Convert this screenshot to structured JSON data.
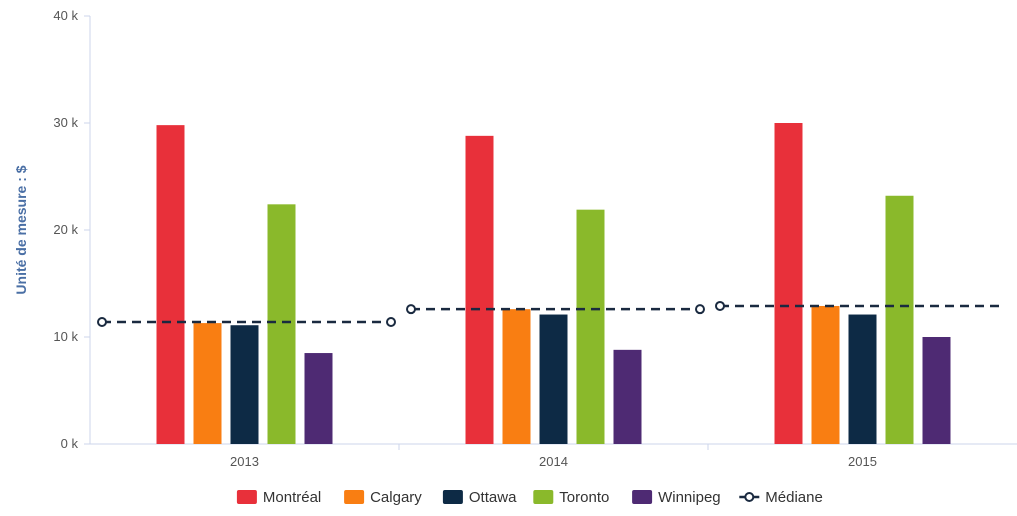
{
  "chart_data": {
    "type": "bar",
    "title": "",
    "xlabel": "",
    "ylabel": "Unité de mesure : $",
    "categories": [
      "2013",
      "2014",
      "2015"
    ],
    "ylim": [
      0,
      40000
    ],
    "yticks": [
      0,
      10000,
      20000,
      30000,
      40000
    ],
    "ytick_labels": [
      "0 k",
      "10 k",
      "20 k",
      "30 k",
      "40 k"
    ],
    "grid": false,
    "legend_position": "bottom-center",
    "series": [
      {
        "name": "Montréal",
        "color": "#e8303a",
        "values": [
          29800,
          28800,
          30000
        ]
      },
      {
        "name": "Calgary",
        "color": "#f97e12",
        "values": [
          11300,
          12600,
          12900
        ]
      },
      {
        "name": "Ottawa",
        "color": "#0d2a45",
        "values": [
          11100,
          12100,
          12100
        ]
      },
      {
        "name": "Toronto",
        "color": "#8ab92b",
        "values": [
          22400,
          21900,
          23200
        ]
      },
      {
        "name": "Winnipeg",
        "color": "#4e2a73",
        "values": [
          8500,
          8800,
          10000
        ]
      }
    ],
    "median": {
      "name": "Médiane",
      "style": "dashed",
      "color": "#1a2a40",
      "values": [
        11400,
        12600,
        12900
      ]
    }
  }
}
